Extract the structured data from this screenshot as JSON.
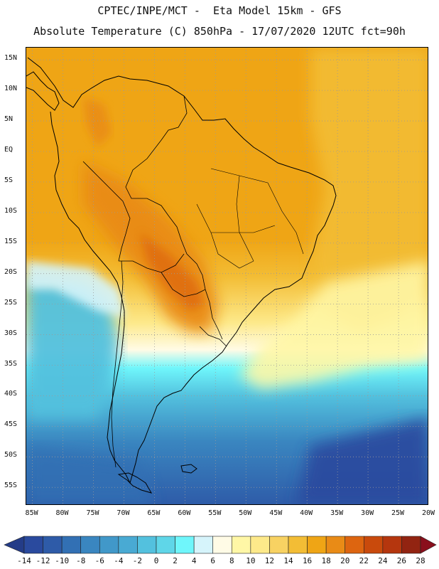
{
  "header": {
    "line1": "CPTEC/INPE/MCT -  Eta Model 15km - GFS",
    "line2": "Absolute Temperature (C) 850hPa - 17/07/2020 12UTC fct=90h"
  },
  "map": {
    "region": "South America",
    "variable": "Absolute Temperature (C)",
    "level": "850hPa",
    "lat_ticks": [
      "15N",
      "10N",
      "5N",
      "EQ",
      "5S",
      "10S",
      "15S",
      "20S",
      "25S",
      "30S",
      "35S",
      "40S",
      "45S",
      "50S",
      "55S"
    ],
    "lon_ticks": [
      "85W",
      "80W",
      "75W",
      "70W",
      "65W",
      "60W",
      "55W",
      "50W",
      "45W",
      "40W",
      "35W",
      "30W",
      "25W",
      "20W"
    ],
    "lat_range": [
      -58,
      17
    ],
    "lon_range": [
      -86,
      -20
    ]
  },
  "colorbar": {
    "labels": [
      "-14",
      "-12",
      "-10",
      "-8",
      "-6",
      "-4",
      "-2",
      "0",
      "2",
      "4",
      "6",
      "8",
      "10",
      "12",
      "14",
      "16",
      "18",
      "20",
      "22",
      "24",
      "26",
      "28"
    ],
    "colors": [
      "#2a4a9e",
      "#2e5ba8",
      "#3270b4",
      "#3a86c0",
      "#4198c9",
      "#49aad3",
      "#53c1de",
      "#5fd6e8",
      "#6ff6fb",
      "#d6f4fb",
      "#fffbe6",
      "#fff7a6",
      "#fde98a",
      "#f8d262",
      "#f3bd35",
      "#efa515",
      "#e98b16",
      "#dd6510",
      "#c94a0c",
      "#b5360e",
      "#922411"
    ],
    "under_color": "#243c88",
    "over_color": "#8a0f1c"
  }
}
